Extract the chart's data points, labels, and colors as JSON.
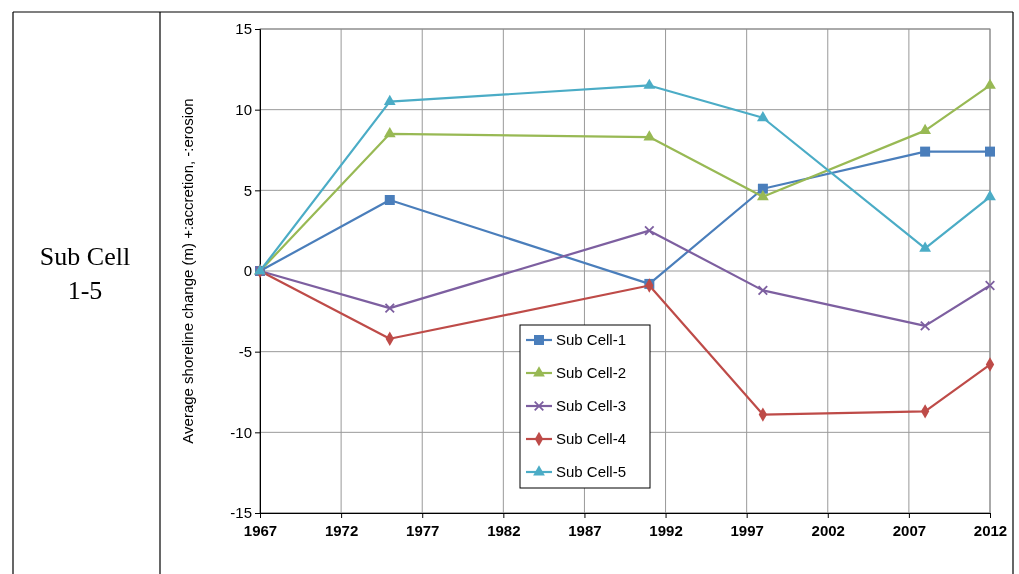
{
  "chart_data": {
    "type": "line",
    "ylabel": "Average shoreline change (m)  +:accretion, -:erosion",
    "annotations": [
      "Sub Cell 1-5"
    ],
    "x": [
      1967,
      1975,
      1991,
      1998,
      2008,
      2012
    ],
    "xlim": [
      1967,
      2012
    ],
    "xticks": [
      1967,
      1972,
      1977,
      1982,
      1987,
      1992,
      1997,
      2002,
      2007,
      2012
    ],
    "ylim": [
      -15,
      15
    ],
    "yticks": [
      -15,
      -10,
      -5,
      0,
      5,
      10,
      15
    ],
    "grid": true,
    "legend": "bottom",
    "series": [
      {
        "name": "Sub Cell-1",
        "color": "#4a7ebb",
        "marker": "square",
        "values": [
          0,
          4.4,
          -0.8,
          5.1,
          7.4,
          7.4
        ]
      },
      {
        "name": "Sub Cell-2",
        "color": "#98b954",
        "marker": "triangle",
        "values": [
          0,
          8.5,
          8.3,
          4.6,
          8.7,
          11.5
        ]
      },
      {
        "name": "Sub Cell-3",
        "color": "#7d5fa0",
        "marker": "cross",
        "values": [
          0,
          -2.3,
          2.5,
          -1.2,
          -3.4,
          -0.9
        ]
      },
      {
        "name": "Sub Cell-4",
        "color": "#be4b48",
        "marker": "diamond",
        "values": [
          0,
          -4.2,
          -0.9,
          -8.9,
          -8.7,
          -5.8
        ]
      },
      {
        "name": "Sub Cell-5",
        "color": "#4bacc6",
        "marker": "triangle",
        "values": [
          0,
          10.5,
          11.5,
          9.5,
          1.4,
          4.6
        ]
      }
    ]
  }
}
